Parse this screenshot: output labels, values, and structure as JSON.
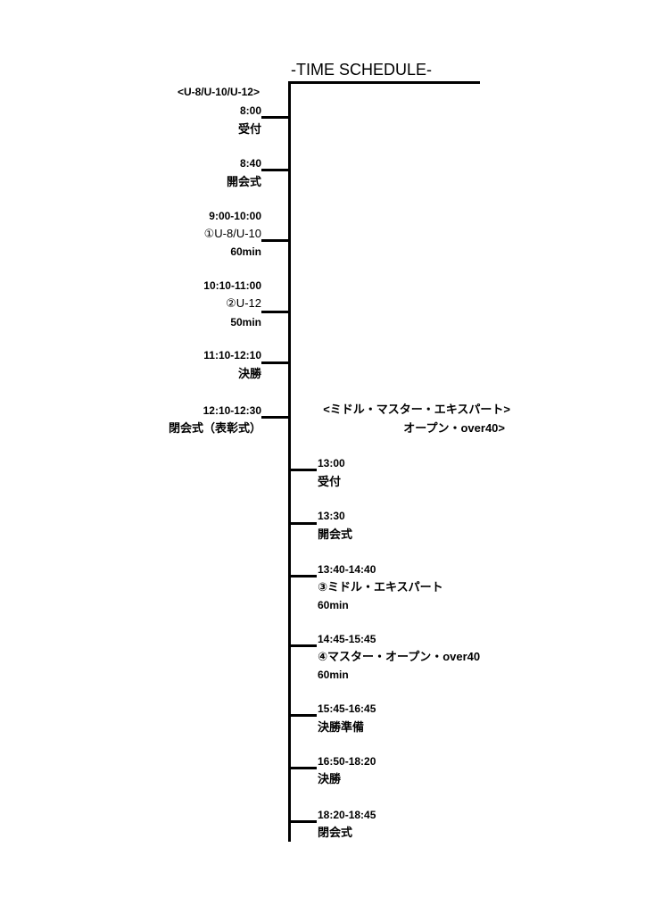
{
  "title": "-TIME SCHEDULE-",
  "left_group": {
    "header": "<U-8/U-10/U-12>",
    "items": [
      {
        "time": "8:00",
        "label": "受付"
      },
      {
        "time": "8:40",
        "label": "開会式"
      },
      {
        "time": "9:00-10:00",
        "label": "①U-8/U-10",
        "duration": "60min"
      },
      {
        "time": "10:10-11:00",
        "label": "②U-12",
        "duration": "50min"
      },
      {
        "time": "11:10-12:10",
        "label": "決勝"
      },
      {
        "time": "12:10-12:30",
        "label": "閉会式（表彰式）"
      }
    ]
  },
  "right_group": {
    "header_line1": "<ミドル・マスター・エキスパート>",
    "header_line2": "オープン・over40>",
    "items": [
      {
        "time": "13:00",
        "label": "受付"
      },
      {
        "time": "13:30",
        "label": "開会式"
      },
      {
        "time": "13:40-14:40",
        "label": "③ミドル・エキスパート",
        "duration": "60min"
      },
      {
        "time": "14:45-15:45",
        "label": "④マスター・オープン・over40",
        "duration": "60min"
      },
      {
        "time": "15:45-16:45",
        "label": "決勝準備"
      },
      {
        "time": "16:50-18:20",
        "label": "決勝"
      },
      {
        "time": "18:20-18:45",
        "label": "閉会式"
      }
    ]
  }
}
